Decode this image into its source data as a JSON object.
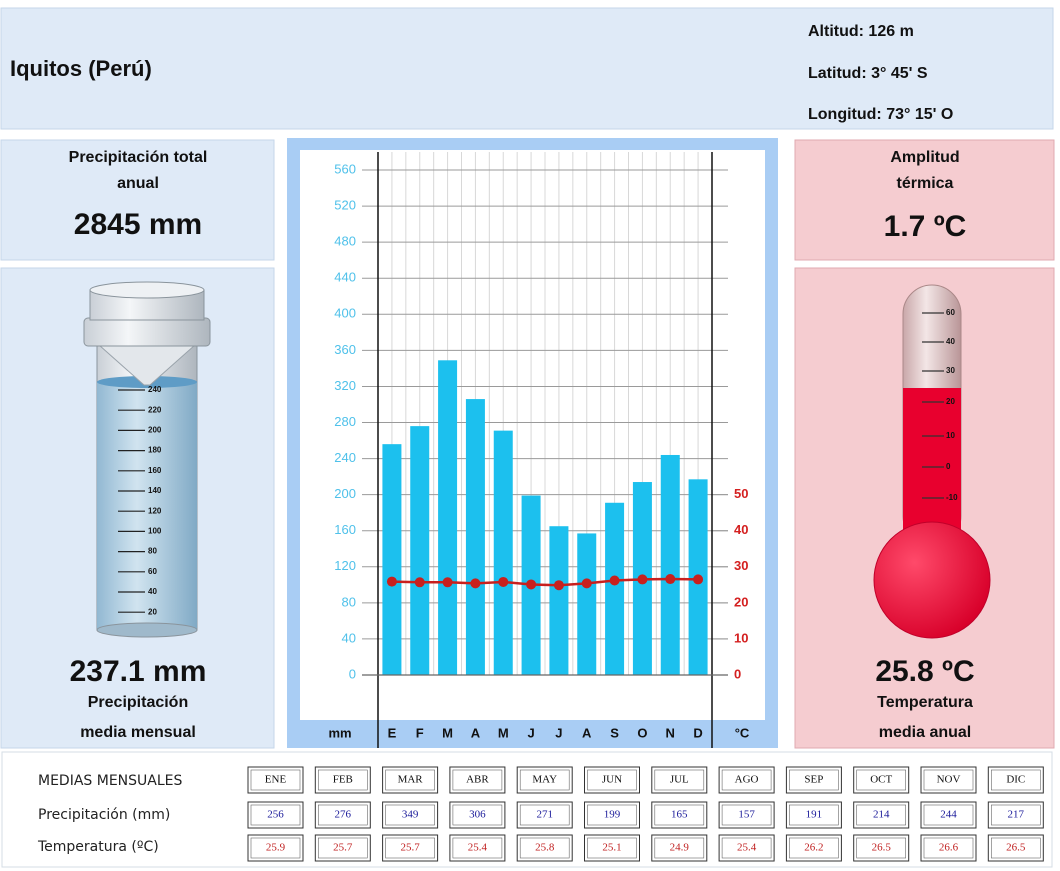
{
  "header": {
    "title": "Iquitos (Perú)",
    "altitude": "Altitud: 126 m",
    "latitude": "Latitud:  3° 45' S",
    "longitude": "Longitud:  73° 15' O"
  },
  "annual_precipitation": {
    "label": [
      "Precipitación total",
      "anual"
    ],
    "value": "2845 mm"
  },
  "monthly_mean_precipitation": {
    "value": "237.1 mm",
    "label": [
      "Precipitación",
      "media mensual"
    ],
    "gauge_ticks": [
      "240",
      "220",
      "200",
      "180",
      "160",
      "140",
      "120",
      "100",
      "80",
      "60",
      "40",
      "20"
    ]
  },
  "thermal_amplitude": {
    "label": [
      "Amplitud",
      "térmica"
    ],
    "value": "1.7 ºC"
  },
  "annual_mean_temperature": {
    "value": "25.8 ºC",
    "label": [
      "Temperatura",
      "media anual"
    ],
    "thermometer_ticks": [
      "60",
      "40",
      "30",
      "20",
      "10",
      "0",
      "-10"
    ]
  },
  "chart_data": {
    "type": "climograph",
    "categories": [
      "E",
      "F",
      "M",
      "A",
      "M",
      "J",
      "J",
      "A",
      "S",
      "O",
      "N",
      "D"
    ],
    "ylabel": "mm",
    "y2label": "°C",
    "ylim": [
      0,
      580
    ],
    "yticks": [
      0,
      40,
      80,
      120,
      160,
      200,
      240,
      280,
      320,
      360,
      400,
      440,
      480,
      520,
      560
    ],
    "y2lim": [
      0,
      145
    ],
    "y2ticks": [
      0,
      10,
      20,
      30,
      40,
      50
    ],
    "grid": true,
    "series": [
      {
        "name": "Precipitación (mm)",
        "type": "bar",
        "color": "#1cc0ee",
        "values": [
          256,
          276,
          349,
          306,
          271,
          199,
          165,
          157,
          191,
          214,
          244,
          217
        ]
      },
      {
        "name": "Temperatura (ºC)",
        "type": "line",
        "axis": "y2",
        "color": "#c8201e",
        "values": [
          25.9,
          25.7,
          25.7,
          25.4,
          25.8,
          25.1,
          24.9,
          25.4,
          26.2,
          26.5,
          26.6,
          26.5
        ]
      }
    ]
  },
  "table": {
    "title": "MEDIAS MENSUALES",
    "months": [
      "ENE",
      "FEB",
      "MAR",
      "ABR",
      "MAY",
      "JUN",
      "JUL",
      "AGO",
      "SEP",
      "OCT",
      "NOV",
      "DIC"
    ]
  }
}
